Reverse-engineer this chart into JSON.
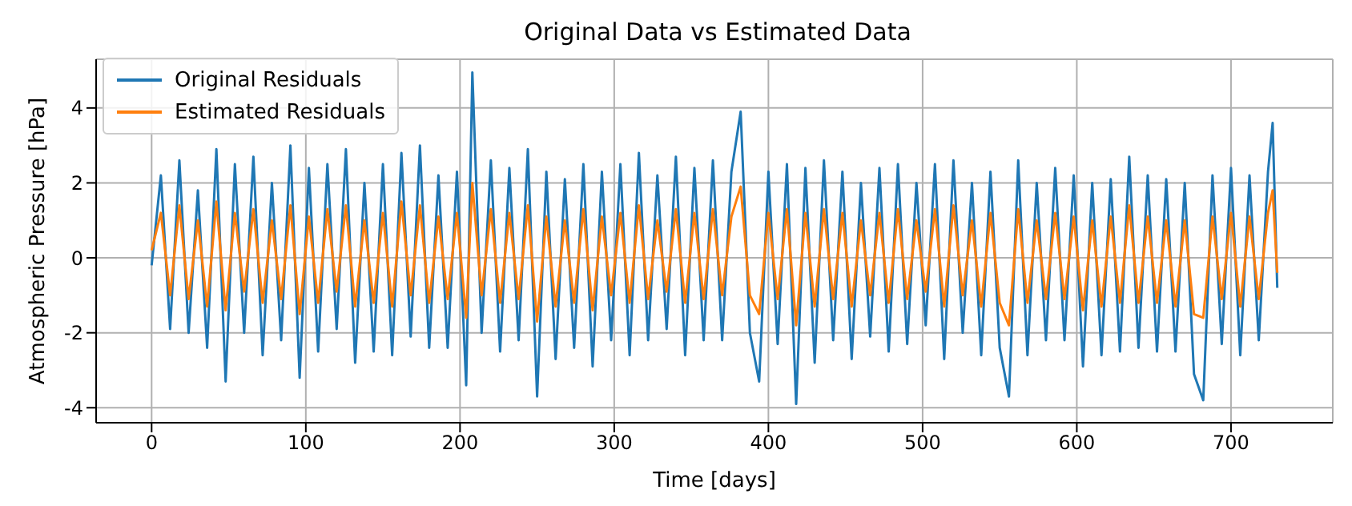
{
  "chart_data": {
    "type": "line",
    "title": "Original Data vs Estimated Data",
    "xlabel": "Time [days]",
    "ylabel": "Atmospheric Pressure [hPa]",
    "x": [
      0,
      6,
      12,
      18,
      24,
      30,
      36,
      42,
      48,
      54,
      60,
      66,
      72,
      78,
      84,
      90,
      96,
      102,
      108,
      114,
      120,
      126,
      132,
      138,
      144,
      150,
      156,
      162,
      168,
      174,
      180,
      186,
      192,
      198,
      204,
      208,
      214,
      220,
      226,
      232,
      238,
      244,
      250,
      256,
      262,
      268,
      274,
      280,
      286,
      292,
      298,
      304,
      310,
      316,
      322,
      328,
      334,
      340,
      346,
      352,
      358,
      364,
      370,
      376,
      382,
      388,
      394,
      400,
      406,
      412,
      418,
      424,
      430,
      436,
      442,
      448,
      454,
      460,
      466,
      472,
      478,
      484,
      490,
      496,
      502,
      508,
      514,
      520,
      526,
      532,
      538,
      544,
      550,
      556,
      562,
      568,
      574,
      580,
      586,
      592,
      598,
      604,
      610,
      616,
      622,
      628,
      634,
      640,
      646,
      652,
      658,
      664,
      670,
      676,
      682,
      688,
      694,
      700,
      706,
      712,
      718,
      724,
      727,
      730
    ],
    "series": [
      {
        "name": "Original Residuals",
        "color": "#1f77b4",
        "values": [
          -0.2,
          2.2,
          -1.9,
          2.6,
          -2.0,
          1.8,
          -2.4,
          2.9,
          -3.3,
          2.5,
          -2.0,
          2.7,
          -2.6,
          2.0,
          -2.2,
          3.0,
          -3.2,
          2.4,
          -2.5,
          2.5,
          -1.9,
          2.9,
          -2.8,
          2.0,
          -2.5,
          2.5,
          -2.6,
          2.8,
          -2.1,
          3.0,
          -2.4,
          2.2,
          -2.4,
          2.3,
          -3.4,
          4.95,
          -2.0,
          2.6,
          -2.5,
          2.4,
          -2.2,
          2.9,
          -3.7,
          2.3,
          -2.7,
          2.1,
          -2.4,
          2.5,
          -2.9,
          2.3,
          -2.2,
          2.5,
          -2.6,
          2.8,
          -2.2,
          2.2,
          -1.9,
          2.7,
          -2.6,
          2.4,
          -2.2,
          2.6,
          -2.2,
          2.3,
          3.9,
          -2.0,
          -3.3,
          2.3,
          -2.3,
          2.5,
          -3.9,
          2.4,
          -2.8,
          2.6,
          -2.2,
          2.3,
          -2.7,
          2.0,
          -2.1,
          2.4,
          -2.5,
          2.5,
          -2.3,
          2.0,
          -1.8,
          2.5,
          -2.7,
          2.6,
          -2.0,
          2.0,
          -2.6,
          2.3,
          -2.4,
          -3.7,
          2.6,
          -2.6,
          2.0,
          -2.2,
          2.4,
          -2.2,
          2.2,
          -2.9,
          2.0,
          -2.6,
          2.1,
          -2.5,
          2.7,
          -2.4,
          2.2,
          -2.5,
          2.1,
          -2.5,
          2.0,
          -3.1,
          -3.8,
          2.2,
          -2.3,
          2.4,
          -2.6,
          2.2,
          -2.2,
          2.3,
          3.6,
          -0.8
        ]
      },
      {
        "name": "Estimated Residuals",
        "color": "#ff7f0e",
        "values": [
          0.2,
          1.2,
          -1.0,
          1.4,
          -1.1,
          1.0,
          -1.3,
          1.5,
          -1.4,
          1.2,
          -0.9,
          1.3,
          -1.2,
          1.0,
          -1.1,
          1.4,
          -1.5,
          1.1,
          -1.2,
          1.3,
          -0.9,
          1.4,
          -1.3,
          1.0,
          -1.2,
          1.2,
          -1.3,
          1.5,
          -1.0,
          1.4,
          -1.2,
          1.1,
          -1.1,
          1.2,
          -1.6,
          2.0,
          -1.0,
          1.3,
          -1.2,
          1.2,
          -1.1,
          1.4,
          -1.7,
          1.1,
          -1.3,
          1.0,
          -1.2,
          1.3,
          -1.4,
          1.1,
          -1.0,
          1.2,
          -1.2,
          1.4,
          -1.1,
          1.0,
          -0.9,
          1.3,
          -1.2,
          1.2,
          -1.1,
          1.3,
          -1.0,
          1.1,
          1.9,
          -1.0,
          -1.5,
          1.2,
          -1.1,
          1.3,
          -1.8,
          1.2,
          -1.3,
          1.3,
          -1.1,
          1.2,
          -1.3,
          1.0,
          -1.0,
          1.2,
          -1.2,
          1.3,
          -1.1,
          1.0,
          -0.9,
          1.3,
          -1.3,
          1.4,
          -1.0,
          1.0,
          -1.3,
          1.2,
          -1.2,
          -1.8,
          1.3,
          -1.2,
          1.0,
          -1.1,
          1.2,
          -1.1,
          1.1,
          -1.4,
          1.0,
          -1.3,
          1.1,
          -1.2,
          1.4,
          -1.2,
          1.1,
          -1.2,
          1.0,
          -1.3,
          1.0,
          -1.5,
          -1.6,
          1.1,
          -1.1,
          1.2,
          -1.3,
          1.1,
          -1.1,
          1.2,
          1.8,
          -0.4
        ]
      }
    ],
    "xlim": [
      -36,
      766
    ],
    "ylim": [
      -4.4,
      5.3
    ],
    "xticks": [
      0,
      100,
      200,
      300,
      400,
      500,
      600,
      700
    ],
    "yticks": [
      -4,
      -2,
      0,
      2,
      4
    ],
    "grid": true,
    "legend": "top left",
    "marker": "none",
    "line_style": "solid"
  }
}
